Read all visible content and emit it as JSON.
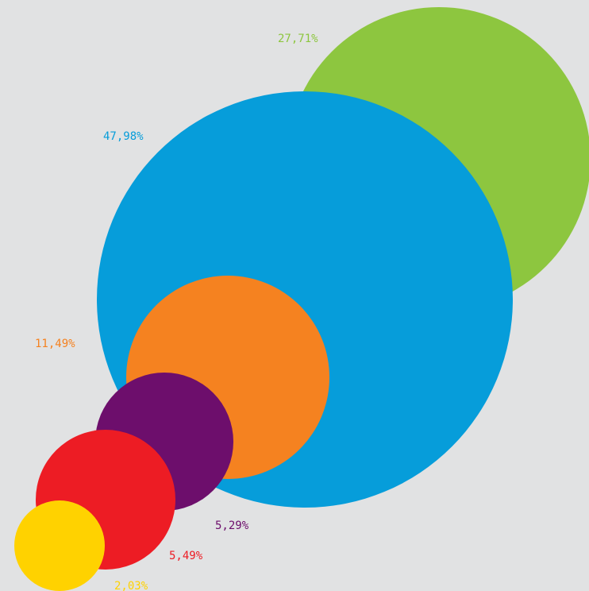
{
  "chart_data": {
    "type": "bubble",
    "title": "",
    "series": [
      {
        "label": "27,71%",
        "value": 27.71,
        "color": "#8dc63f"
      },
      {
        "label": "47,98%",
        "value": 47.98,
        "color": "#069dda"
      },
      {
        "label": "11,49%",
        "value": 11.49,
        "color": "#f58220"
      },
      {
        "label": "5,29%",
        "value": 5.29,
        "color": "#6d0e6c"
      },
      {
        "label": "5,49%",
        "value": 5.49,
        "color": "#ed1c24"
      },
      {
        "label": "2,03%",
        "value": 2.03,
        "color": "#ffd200"
      }
    ]
  }
}
